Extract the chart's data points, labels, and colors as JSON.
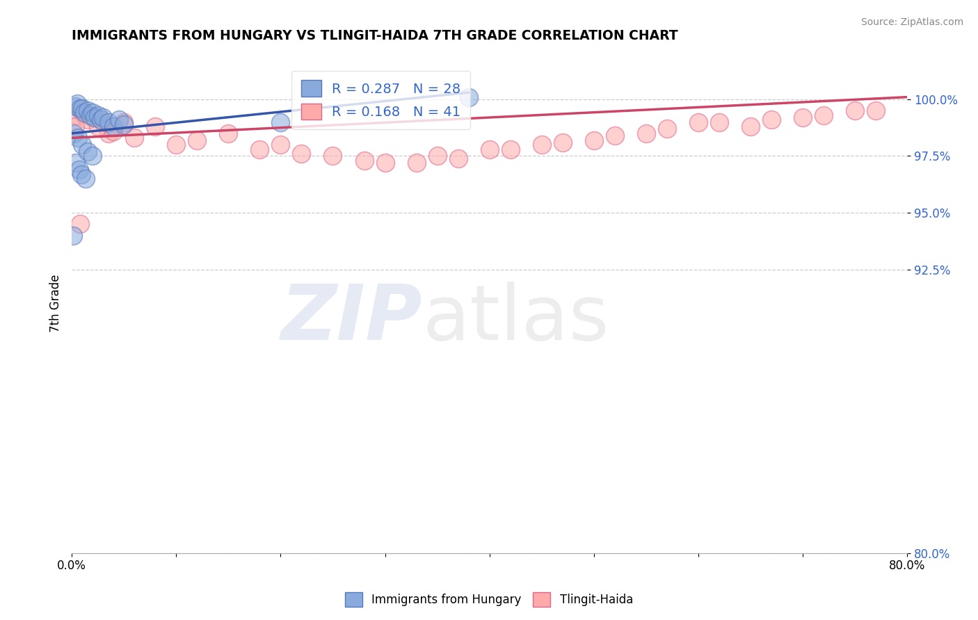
{
  "title": "IMMIGRANTS FROM HUNGARY VS TLINGIT-HAIDA 7TH GRADE CORRELATION CHART",
  "source": "Source: ZipAtlas.com",
  "ylabel": "7th Grade",
  "xlim": [
    0.0,
    80.0
  ],
  "ylim": [
    80.0,
    102.0
  ],
  "yticks": [
    80.0,
    92.5,
    95.0,
    97.5,
    100.0
  ],
  "ytick_labels": [
    "80.0%",
    "92.5%",
    "95.0%",
    "97.5%",
    "100.0%"
  ],
  "xtick_count": 9,
  "blue_R": 0.287,
  "blue_N": 28,
  "pink_R": 0.168,
  "pink_N": 41,
  "blue_face_color": "#88AADD",
  "blue_edge_color": "#5577BB",
  "pink_face_color": "#FFAAAA",
  "pink_edge_color": "#DD6688",
  "blue_line_color": "#3355AA",
  "pink_line_color": "#CC4466",
  "stat_color": "#3366CC",
  "legend_label_blue": "Immigrants from Hungary",
  "legend_label_pink": "Tlingit-Haida",
  "blue_scatter_x": [
    0.2,
    0.3,
    0.4,
    0.5,
    0.6,
    0.7,
    0.8,
    0.9,
    1.0,
    1.0,
    1.2,
    1.3,
    1.5,
    1.5,
    1.8,
    2.0,
    2.0,
    2.2,
    2.5,
    2.8,
    3.0,
    3.5,
    4.0,
    4.5,
    5.0,
    0.1,
    38.0,
    20.0
  ],
  "blue_scatter_y": [
    98.5,
    99.7,
    97.2,
    99.8,
    98.3,
    96.9,
    99.6,
    96.7,
    99.6,
    98.0,
    99.4,
    96.5,
    99.5,
    97.7,
    99.3,
    99.4,
    97.5,
    99.2,
    99.3,
    99.1,
    99.2,
    99.0,
    98.8,
    99.1,
    98.9,
    94.0,
    100.1,
    99.0
  ],
  "pink_scatter_x": [
    1.0,
    2.0,
    3.0,
    3.5,
    5.0,
    8.0,
    15.0,
    20.0,
    25.0,
    30.0,
    35.0,
    40.0,
    45.0,
    50.0,
    55.0,
    60.0,
    65.0,
    70.0,
    75.0,
    0.5,
    1.5,
    2.5,
    4.0,
    6.0,
    10.0,
    18.0,
    22.0,
    28.0,
    33.0,
    37.0,
    42.0,
    47.0,
    52.0,
    57.0,
    62.0,
    67.0,
    72.0,
    77.0,
    0.3,
    12.0,
    0.8
  ],
  "pink_scatter_y": [
    99.4,
    99.2,
    99.0,
    98.5,
    99.0,
    98.8,
    98.5,
    98.0,
    97.5,
    97.2,
    97.5,
    97.8,
    98.0,
    98.2,
    98.5,
    99.0,
    98.8,
    99.2,
    99.5,
    99.3,
    99.1,
    98.8,
    98.6,
    98.3,
    98.0,
    97.8,
    97.6,
    97.3,
    97.2,
    97.4,
    97.8,
    98.1,
    98.4,
    98.7,
    99.0,
    99.1,
    99.3,
    99.5,
    98.8,
    98.2,
    94.5
  ],
  "blue_trend_x": [
    0.0,
    38.0
  ],
  "blue_trend_y": [
    98.5,
    100.3
  ],
  "pink_trend_x": [
    0.0,
    80.0
  ],
  "pink_trend_y": [
    98.3,
    100.1
  ]
}
